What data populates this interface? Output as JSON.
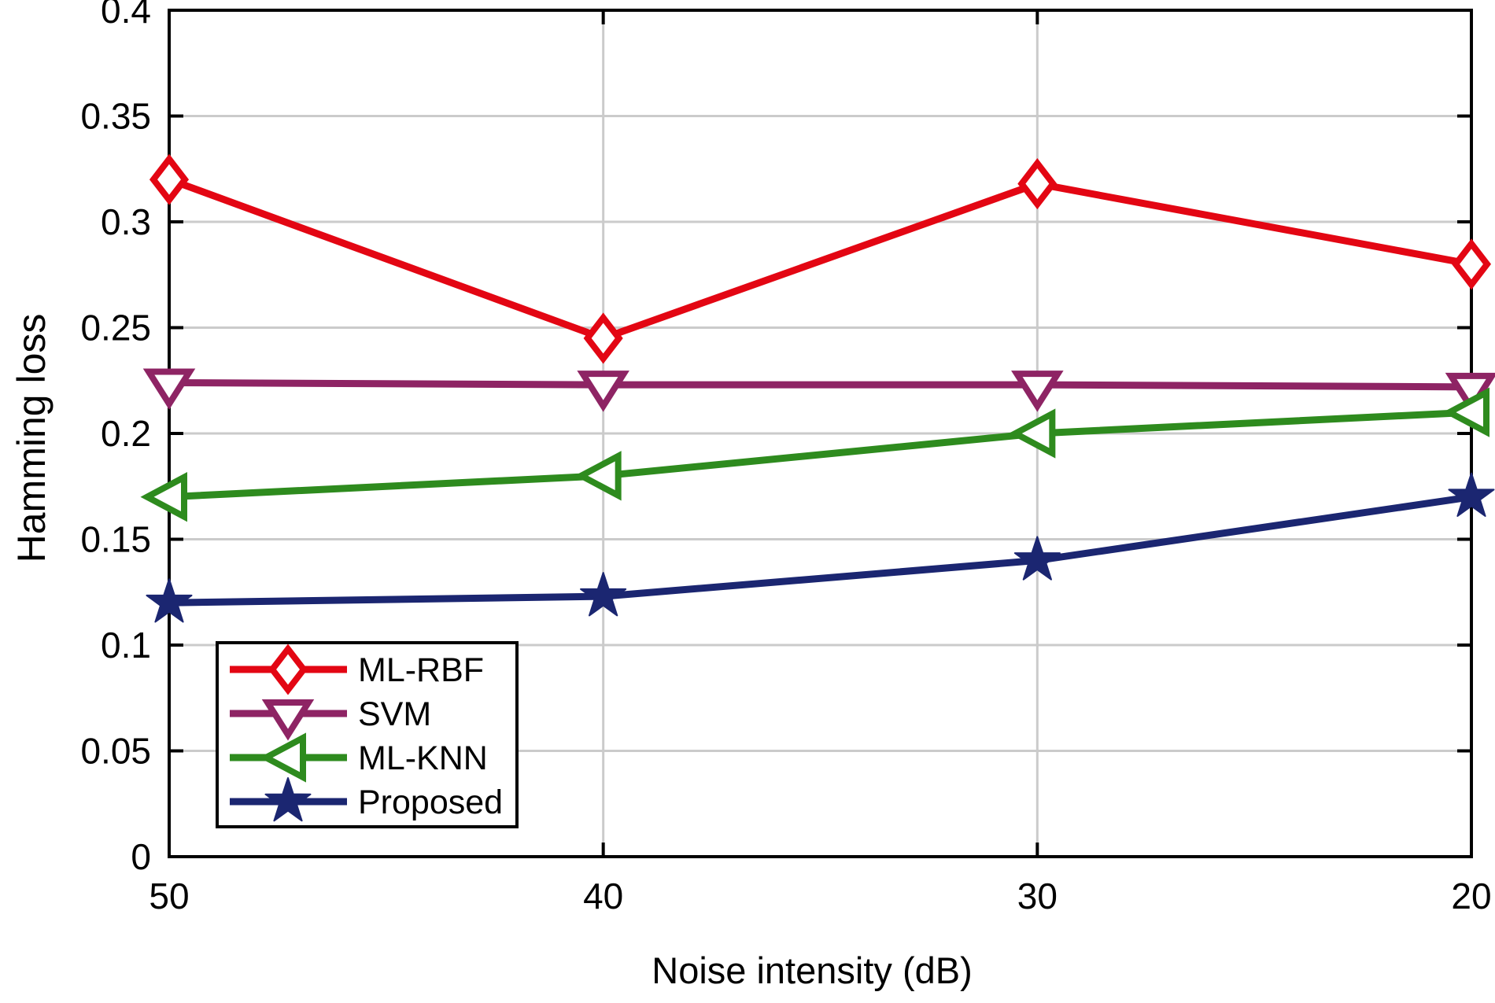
{
  "chart_data": {
    "type": "line",
    "title": "",
    "xlabel": "Noise intensity (dB)",
    "ylabel": "Hamming loss",
    "x_tick_labels": [
      "50",
      "40",
      "30",
      "20"
    ],
    "x_values": [
      50,
      40,
      30,
      20
    ],
    "ylim": [
      0,
      0.4
    ],
    "y_ticks": [
      0,
      0.05,
      0.1,
      0.15,
      0.2,
      0.25,
      0.3,
      0.35,
      0.4
    ],
    "y_tick_labels": [
      "0",
      "0.05",
      "0.1",
      "0.15",
      "0.2",
      "0.25",
      "0.3",
      "0.35",
      "0.4"
    ],
    "grid": true,
    "legend_position": "inside-bottom-left",
    "series": [
      {
        "name": "ML-RBF",
        "marker": "diamond",
        "color": "#E30613",
        "values": [
          0.32,
          0.245,
          0.318,
          0.28
        ]
      },
      {
        "name": "SVM",
        "marker": "triangle-down",
        "color": "#8E2464",
        "values": [
          0.224,
          0.223,
          0.223,
          0.222
        ]
      },
      {
        "name": "ML-KNN",
        "marker": "triangle-left",
        "color": "#2E8B1E",
        "values": [
          0.17,
          0.18,
          0.2,
          0.21
        ]
      },
      {
        "name": "Proposed",
        "marker": "star",
        "color": "#1B2671",
        "values": [
          0.12,
          0.123,
          0.14,
          0.17
        ]
      }
    ],
    "colors": {
      "grid": "#CBCBCB",
      "axis": "#000000",
      "background": "#FFFFFF"
    }
  }
}
